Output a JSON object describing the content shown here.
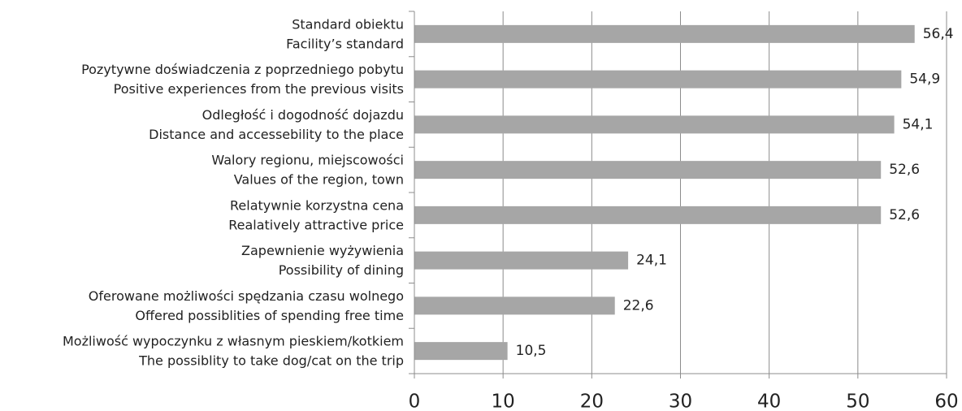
{
  "chart_data": {
    "type": "barh",
    "categories": [
      [
        "Standard obiektu",
        "Facility’s standard"
      ],
      [
        "Pozytywne doświadczenia z poprzedniego pobytu",
        "Positive experiences from the previous visits"
      ],
      [
        "Odległość i dogodność dojazdu",
        "Distance and accessebility to the place"
      ],
      [
        "Walory regionu, miejscowości",
        "Values of the region, town"
      ],
      [
        "Relatywnie korzystna cena",
        "Realatively attractive price"
      ],
      [
        "Zapewnienie wyżywienia",
        "Possibility of dining"
      ],
      [
        "Oferowane możliwości spędzania czasu wolnego",
        "Offered possiblities of spending free time"
      ],
      [
        "Możliwość wypoczynku z własnym pieskiem/kotkiem",
        "The possiblity to take dog/cat on the trip"
      ]
    ],
    "values": [
      56.4,
      54.9,
      54.1,
      52.6,
      52.6,
      24.1,
      22.6,
      10.5
    ],
    "value_labels": [
      "56,4",
      "54,9",
      "54,1",
      "52,6",
      "52,6",
      "24,1",
      "22,6",
      "10,5"
    ],
    "color": "#a6a6a6",
    "xlim": [
      0,
      60
    ],
    "xticks": [
      0,
      10,
      20,
      30,
      40,
      50,
      60
    ],
    "grid": true
  }
}
